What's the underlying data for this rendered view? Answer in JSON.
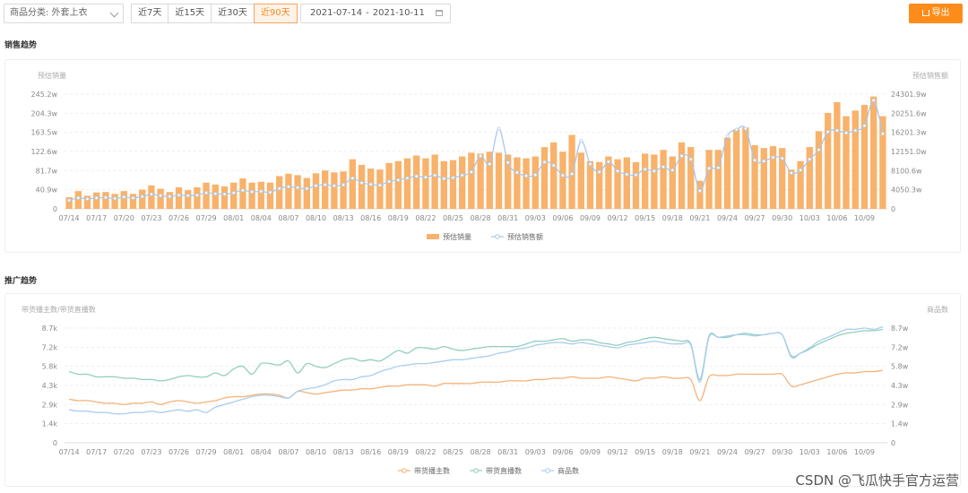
{
  "toolbar": {
    "category_label": "商品分类: 外套上衣",
    "ranges": [
      "近7天",
      "近15天",
      "近30天",
      "近90天"
    ],
    "active_range": 3,
    "date_start": "2021-07-14",
    "date_sep": "-",
    "date_end": "2021-10-11",
    "export_label": "导出"
  },
  "sales_section_title": "销售趋势",
  "promo_section_title": "推广趋势",
  "watermark": "CSDN @飞瓜快手官方运营",
  "colors": {
    "bar": "#f8b26b",
    "sales_line": "#a9c8ea",
    "anchor": "#f5b27a",
    "live": "#92cfbc",
    "goods": "#a9cdef"
  },
  "chart_data": [
    {
      "type": "bar",
      "ylabel_left": "预估销量",
      "ylabel_right": "预估销售额",
      "left_ticks": [
        "0",
        "40.9w",
        "81.7w",
        "122.6w",
        "163.5w",
        "204.3w",
        "245.2w"
      ],
      "right_ticks": [
        "0",
        "4050.3w",
        "8100.6w",
        "12151.0w",
        "16201.3w",
        "20251.6w",
        "24301.9w"
      ],
      "ylim": [
        0,
        245.2
      ],
      "ylim_right": [
        0,
        24301.9
      ],
      "x_ticks": [
        "07/14",
        "07/17",
        "07/20",
        "07/23",
        "07/26",
        "07/29",
        "08/01",
        "08/04",
        "08/07",
        "08/10",
        "08/13",
        "08/16",
        "08/19",
        "08/22",
        "08/25",
        "08/28",
        "08/31",
        "09/03",
        "09/06",
        "09/09",
        "09/12",
        "09/15",
        "09/18",
        "09/21",
        "09/24",
        "09/27",
        "09/30",
        "10/03",
        "10/06",
        "10/09"
      ],
      "series": [
        {
          "name": "预估销量",
          "type": "bar",
          "values": [
            25,
            38,
            28,
            35,
            36,
            32,
            38,
            32,
            41,
            50,
            43,
            36,
            46,
            40,
            46,
            56,
            52,
            48,
            56,
            65,
            56,
            58,
            56,
            70,
            75,
            72,
            66,
            76,
            82,
            78,
            80,
            106,
            94,
            86,
            84,
            98,
            102,
            108,
            114,
            108,
            116,
            102,
            104,
            112,
            120,
            118,
            122,
            120,
            116,
            110,
            108,
            112,
            132,
            142,
            122,
            158,
            120,
            102,
            100,
            112,
            106,
            110,
            100,
            118,
            116,
            126,
            112,
            142,
            132,
            60,
            126,
            126,
            152,
            170,
            174,
            136,
            130,
            134,
            130,
            84,
            102,
            132,
            166,
            205,
            228,
            198,
            210,
            222,
            240,
            198
          ]
        },
        {
          "name": "预估销售额",
          "type": "line",
          "values": [
            1800,
            2300,
            2100,
            2300,
            2400,
            2200,
            2500,
            2300,
            2600,
            3100,
            2800,
            2600,
            2900,
            2800,
            2900,
            3400,
            3200,
            3100,
            3400,
            3900,
            3600,
            3700,
            3500,
            4300,
            4700,
            4500,
            4300,
            4900,
            5100,
            4900,
            5100,
            6500,
            5500,
            5200,
            5000,
            5800,
            6100,
            6500,
            6900,
            6700,
            7100,
            6400,
            6600,
            7100,
            7800,
            11200,
            9500,
            17000,
            9800,
            7700,
            7000,
            7200,
            9900,
            9200,
            7100,
            7400,
            14400,
            9500,
            7800,
            10000,
            8000,
            7300,
            7200,
            8400,
            8000,
            8900,
            8200,
            11200,
            10500,
            3800,
            8600,
            8700,
            15400,
            16800,
            17000,
            10300,
            10100,
            10900,
            10700,
            7600,
            8200,
            10500,
            12500,
            16300,
            16600,
            16100,
            16600,
            17600,
            23000,
            15900
          ]
        }
      ],
      "legend": "bottom"
    },
    {
      "type": "line",
      "ylabel_left": "带货播主数/带货直播数",
      "ylabel_right": "商品数",
      "left_ticks": [
        "0",
        "1.4k",
        "2.9k",
        "4.3k",
        "5.8k",
        "7.2k",
        "8.7k"
      ],
      "right_ticks": [
        "0",
        "1.4w",
        "2.9w",
        "4.3w",
        "5.8w",
        "7.2w",
        "8.7w"
      ],
      "ylim": [
        0,
        8.7
      ],
      "ylim_right": [
        0,
        8.7
      ],
      "x_ticks": [
        "07/14",
        "07/17",
        "07/20",
        "07/23",
        "07/26",
        "07/29",
        "08/01",
        "08/04",
        "08/07",
        "08/10",
        "08/13",
        "08/16",
        "08/19",
        "08/22",
        "08/25",
        "08/28",
        "08/31",
        "09/03",
        "09/06",
        "09/09",
        "09/12",
        "09/15",
        "09/18",
        "09/21",
        "09/24",
        "09/27",
        "09/30",
        "10/03",
        "10/06",
        "10/09"
      ],
      "series": [
        {
          "name": "带货播主数",
          "values": [
            3.3,
            3.2,
            3.2,
            3.1,
            3.0,
            3.0,
            2.9,
            3.0,
            3.0,
            3.1,
            2.9,
            3.1,
            3.2,
            3.1,
            3.0,
            3.1,
            3.2,
            3.4,
            3.5,
            3.5,
            3.6,
            3.7,
            3.7,
            3.6,
            3.4,
            3.9,
            3.8,
            3.7,
            3.8,
            3.9,
            4.0,
            4.0,
            4.1,
            4.1,
            4.2,
            4.3,
            4.3,
            4.4,
            4.4,
            4.4,
            4.3,
            4.5,
            4.5,
            4.5,
            4.5,
            4.6,
            4.6,
            4.6,
            4.7,
            4.7,
            4.7,
            4.8,
            4.8,
            4.9,
            4.9,
            5.0,
            4.9,
            4.9,
            4.9,
            5.0,
            4.9,
            4.8,
            4.7,
            4.9,
            4.9,
            5.0,
            4.9,
            4.9,
            4.8,
            3.2,
            5.0,
            5.1,
            5.1,
            5.2,
            5.2,
            5.2,
            5.2,
            5.2,
            5.2,
            4.3,
            4.4,
            4.6,
            4.8,
            5.0,
            5.2,
            5.3,
            5.3,
            5.4,
            5.4,
            5.5
          ]
        },
        {
          "name": "带货直播数",
          "values": [
            5.4,
            5.2,
            5.2,
            5.0,
            5.0,
            5.0,
            4.9,
            4.9,
            4.8,
            4.8,
            4.7,
            4.8,
            5.0,
            5.1,
            5.0,
            5.0,
            5.3,
            5.1,
            5.6,
            5.8,
            5.2,
            6.0,
            6.0,
            5.9,
            6.2,
            5.3,
            6.0,
            5.8,
            5.7,
            6.0,
            6.3,
            6.4,
            6.2,
            6.3,
            6.2,
            6.6,
            7.0,
            6.8,
            7.2,
            7.2,
            7.1,
            7.3,
            7.1,
            7.0,
            7.1,
            7.2,
            7.3,
            7.3,
            7.3,
            7.3,
            7.5,
            7.7,
            7.7,
            7.8,
            7.9,
            7.7,
            7.8,
            7.8,
            7.6,
            7.5,
            7.4,
            7.6,
            7.7,
            7.9,
            8.0,
            7.9,
            7.8,
            7.7,
            7.5,
            4.8,
            8.1,
            8.0,
            8.0,
            8.2,
            8.3,
            8.2,
            8.2,
            8.3,
            8.2,
            6.6,
            6.8,
            7.1,
            7.5,
            7.8,
            8.1,
            8.3,
            8.4,
            8.5,
            8.5,
            8.6
          ]
        },
        {
          "name": "商品数",
          "values": [
            2.5,
            2.4,
            2.4,
            2.3,
            2.3,
            2.2,
            2.2,
            2.3,
            2.3,
            2.4,
            2.3,
            2.4,
            2.5,
            2.4,
            2.5,
            2.3,
            2.7,
            2.9,
            3.1,
            3.3,
            3.5,
            3.6,
            3.6,
            3.5,
            3.4,
            3.9,
            4.1,
            4.2,
            4.4,
            4.7,
            4.8,
            4.8,
            5.0,
            5.1,
            5.4,
            5.6,
            5.8,
            5.9,
            6.0,
            6.0,
            6.1,
            6.2,
            6.3,
            6.3,
            6.4,
            6.5,
            6.6,
            6.8,
            6.9,
            7.1,
            7.2,
            7.4,
            7.5,
            7.6,
            7.6,
            7.5,
            7.6,
            7.5,
            7.4,
            7.3,
            7.2,
            7.4,
            7.5,
            7.6,
            7.7,
            7.6,
            7.5,
            7.5,
            7.4,
            4.6,
            8.0,
            8.0,
            8.1,
            8.2,
            8.2,
            8.1,
            8.2,
            8.3,
            8.2,
            6.5,
            6.8,
            7.2,
            7.7,
            8.0,
            8.3,
            8.6,
            8.6,
            8.7,
            8.6,
            8.8
          ]
        }
      ],
      "legend": "bottom"
    }
  ]
}
